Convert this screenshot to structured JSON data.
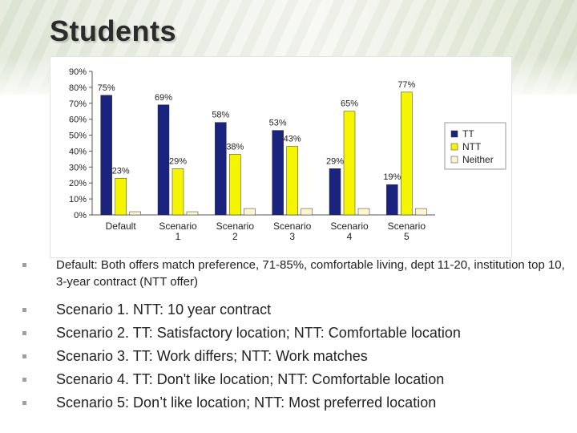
{
  "slide": {
    "title": "Students",
    "bullets": [
      "Default: Both offers match preference, 71-85%, comfortable living, dept 11-20, institution top 10, 3-year contract (NTT offer)",
      "Scenario 1. NTT: 10 year contract",
      "Scenario 2. TT: Satisfactory location; NTT: Comfortable location",
      "Scenario 3. TT: Work differs; NTT: Work matches",
      "Scenario 4. TT: Don't like location; NTT: Comfortable location",
      "Scenario 5: Don’t like location; NTT: Most preferred location"
    ]
  },
  "chart_data": {
    "type": "bar",
    "title": "",
    "xlabel": "",
    "ylabel": "",
    "ylim": [
      0,
      90
    ],
    "yticks": [
      "0%",
      "10%",
      "20%",
      "30%",
      "40%",
      "50%",
      "60%",
      "70%",
      "80%",
      "90%"
    ],
    "categories": [
      [
        "Default"
      ],
      [
        "Scenario",
        "1"
      ],
      [
        "Scenario",
        "2"
      ],
      [
        "Scenario",
        "3"
      ],
      [
        "Scenario",
        "4"
      ],
      [
        "Scenario",
        "5"
      ]
    ],
    "series": [
      {
        "name": "TT",
        "color": "#1a237e",
        "values": [
          75,
          69,
          58,
          53,
          29,
          19
        ],
        "labels": [
          "75%",
          "69%",
          "58%",
          "53%",
          "29%",
          "19%"
        ]
      },
      {
        "name": "NTT",
        "color": "#f5f500",
        "values": [
          23,
          29,
          38,
          43,
          65,
          77
        ],
        "labels": [
          "23%",
          "29%",
          "38%",
          "43%",
          "65%",
          "77%"
        ]
      },
      {
        "name": "Neither",
        "color": "#fbf6d0",
        "values": [
          2,
          2,
          4,
          4,
          4,
          4
        ],
        "labels": [
          "",
          "",
          "",
          "",
          "",
          ""
        ]
      }
    ],
    "legend_position": "right",
    "grid": false
  }
}
